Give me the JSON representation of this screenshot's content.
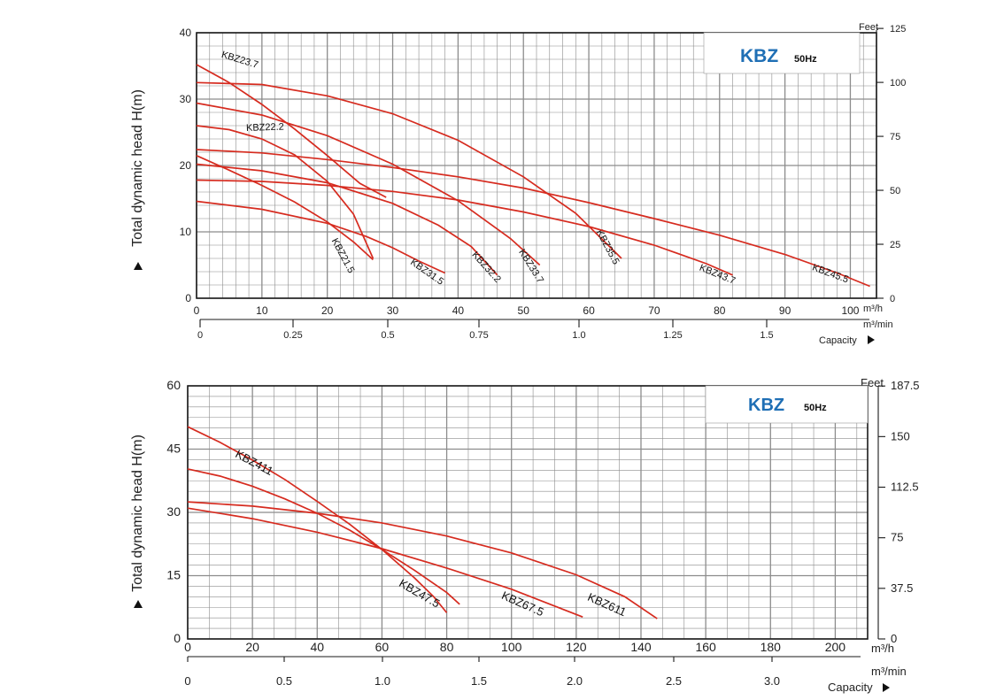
{
  "chart_data": [
    {
      "type": "line",
      "brand": "KBZ",
      "frequency": "50Hz",
      "ylabel": "Total dynamic head H(m)",
      "right_axis_title": "Feet",
      "xunit": "m³/h",
      "x2unit": "m³/min",
      "capacity_label": "Capacity",
      "x_ticks": [
        "0",
        "10",
        "20",
        "30",
        "40",
        "50",
        "60",
        "70",
        "80",
        "90",
        "100"
      ],
      "x2_ticks": [
        "0",
        "0.25",
        "0.5",
        "0.75",
        "1.0",
        "1.25",
        "1.5"
      ],
      "y_ticks": [
        "0",
        "10",
        "20",
        "30",
        "40"
      ],
      "feet_ticks": [
        "0",
        "25",
        "50",
        "75",
        "100",
        "125"
      ],
      "xlim": [
        0,
        104
      ],
      "ylim": [
        0,
        40
      ],
      "series": [
        {
          "name": "KBZ23.7",
          "x": [
            0,
            5,
            10,
            15,
            20,
            25,
            29
          ],
          "y": [
            35.2,
            32.5,
            29.2,
            25.5,
            21.5,
            17.3,
            15.2
          ],
          "label_at": {
            "x": 6.5,
            "y": 35.5,
            "angle": 17
          }
        },
        {
          "name": "KBZ22.2",
          "x": [
            0,
            5,
            10,
            15,
            20,
            24,
            27
          ],
          "y": [
            26.0,
            25.4,
            24.0,
            21.6,
            17.6,
            12.7,
            6.0
          ],
          "label_at": {
            "x": 10.5,
            "y": 25.3,
            "angle": -2
          }
        },
        {
          "name": "KBZ21.5",
          "x": [
            0,
            5,
            10,
            15,
            20,
            24,
            27
          ],
          "y": [
            21.5,
            19.3,
            17.0,
            14.5,
            11.5,
            8.5,
            5.8
          ],
          "label_at": {
            "x": 22,
            "y": 6.2,
            "angle": 62
          }
        },
        {
          "name": "KBZ31.5",
          "x": [
            0,
            10,
            20,
            26,
            30,
            34,
            38
          ],
          "y": [
            14.6,
            13.4,
            11.3,
            9.3,
            7.6,
            5.6,
            3.8
          ],
          "label_at": {
            "x": 35,
            "y": 3.6,
            "angle": 35
          }
        },
        {
          "name": "KBZ32.2",
          "x": [
            0,
            10,
            20,
            30,
            37,
            42,
            46
          ],
          "y": [
            20.2,
            19.2,
            17.4,
            14.3,
            11.0,
            7.8,
            3.5
          ],
          "label_at": {
            "x": 44,
            "y": 4.4,
            "angle": 48
          }
        },
        {
          "name": "KBZ33.7",
          "x": [
            0,
            10,
            20,
            30,
            40,
            48,
            52.5
          ],
          "y": [
            29.4,
            27.6,
            24.5,
            20.2,
            14.7,
            9.0,
            5.0
          ],
          "label_at": {
            "x": 50.8,
            "y": 4.6,
            "angle": 58
          }
        },
        {
          "name": "KBZ35.5",
          "x": [
            0,
            10,
            20,
            30,
            40,
            50,
            58,
            65
          ],
          "y": [
            32.5,
            32.2,
            30.5,
            27.8,
            23.8,
            18.3,
            12.8,
            6.0
          ],
          "label_at": {
            "x": 62.5,
            "y": 7.5,
            "angle": 62
          }
        },
        {
          "name": "KBZ43.7",
          "x": [
            0,
            10,
            20,
            30,
            40,
            50,
            60,
            70,
            78,
            82
          ],
          "y": [
            17.8,
            17.6,
            17.0,
            16.1,
            14.8,
            13.0,
            10.8,
            8.0,
            5.2,
            3.5
          ],
          "label_at": {
            "x": 79.5,
            "y": 3.2,
            "angle": 22
          }
        },
        {
          "name": "KBZ45.5",
          "x": [
            0,
            10,
            20,
            30,
            40,
            50,
            60,
            70,
            80,
            90,
            98,
            103
          ],
          "y": [
            22.4,
            21.9,
            20.9,
            19.7,
            18.3,
            16.6,
            14.4,
            12.0,
            9.5,
            6.6,
            3.8,
            1.8
          ],
          "label_at": {
            "x": 96.8,
            "y": 3.3,
            "angle": 20
          }
        }
      ]
    },
    {
      "type": "line",
      "brand": "KBZ",
      "frequency": "50Hz",
      "ylabel": "Total dynamic head H(m)",
      "right_axis_title": "Feet",
      "xunit": "m³/h",
      "x2unit": "m³/min",
      "capacity_label": "Capacity",
      "x_ticks": [
        "0",
        "20",
        "40",
        "60",
        "80",
        "100",
        "120",
        "140",
        "160",
        "180",
        "200"
      ],
      "x2_ticks": [
        "0",
        "0.5",
        "1.0",
        "1.5",
        "2.0",
        "2.5",
        "3.0"
      ],
      "y_ticks": [
        "0",
        "15",
        "30",
        "45",
        "60"
      ],
      "feet_ticks": [
        "0",
        "37.5",
        "75",
        "112.5",
        "150",
        "187.5"
      ],
      "xlim": [
        0,
        210
      ],
      "ylim": [
        0,
        60
      ],
      "series": [
        {
          "name": "KBZ411",
          "x": [
            0,
            10,
            20,
            30,
            40,
            50,
            60,
            70,
            76,
            80
          ],
          "y": [
            50.3,
            46.6,
            42.4,
            37.8,
            32.6,
            27.2,
            21.2,
            14.5,
            10.0,
            6.2
          ],
          "label_at": {
            "x": 20,
            "y": 41.0,
            "angle": 28
          }
        },
        {
          "name": "KBZ47.5",
          "x": [
            0,
            10,
            20,
            30,
            40,
            50,
            60,
            70,
            80,
            84
          ],
          "y": [
            40.3,
            38.6,
            36.2,
            33.2,
            29.8,
            25.8,
            21.2,
            16.3,
            11.0,
            8.2
          ],
          "label_at": {
            "x": 71,
            "y": 10.0,
            "angle": 30
          }
        },
        {
          "name": "KBZ67.5",
          "x": [
            0,
            20,
            40,
            60,
            80,
            100,
            122
          ],
          "y": [
            31.0,
            28.5,
            25.3,
            21.4,
            16.8,
            11.8,
            5.2
          ],
          "label_at": {
            "x": 103,
            "y": 7.5,
            "angle": 24
          }
        },
        {
          "name": "KBZ611",
          "x": [
            0,
            20,
            40,
            60,
            80,
            100,
            120,
            135,
            145
          ],
          "y": [
            32.5,
            31.5,
            29.8,
            27.5,
            24.4,
            20.4,
            15.2,
            10.0,
            4.8
          ],
          "label_at": {
            "x": 129,
            "y": 7.3,
            "angle": 24
          }
        }
      ]
    }
  ]
}
